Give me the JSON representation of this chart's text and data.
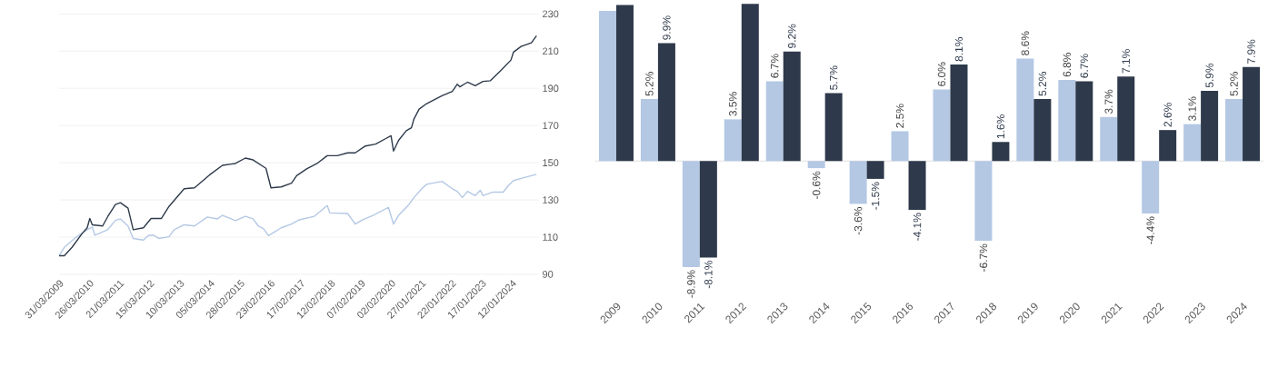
{
  "chart_data": [
    {
      "type": "line",
      "xlim": [
        "2009-03-31",
        "2024-12-01"
      ],
      "ylim": [
        90,
        230
      ],
      "yticks": [
        90,
        110,
        130,
        150,
        170,
        190,
        210,
        230
      ],
      "grid": "y",
      "xticks": [
        {
          "value": "2009-03-31",
          "label": "31/03/2009"
        },
        {
          "value": "2010-03-26",
          "label": "26/03/2010"
        },
        {
          "value": "2011-03-21",
          "label": "21/03/2011"
        },
        {
          "value": "2012-03-15",
          "label": "15/03/2012"
        },
        {
          "value": "2013-03-10",
          "label": "10/03/2013"
        },
        {
          "value": "2014-03-05",
          "label": "05/03/2014"
        },
        {
          "value": "2015-02-28",
          "label": "28/02/2015"
        },
        {
          "value": "2016-02-23",
          "label": "23/02/2016"
        },
        {
          "value": "2017-02-17",
          "label": "17/02/2017"
        },
        {
          "value": "2018-02-12",
          "label": "12/02/2018"
        },
        {
          "value": "2019-02-07",
          "label": "07/02/2019"
        },
        {
          "value": "2020-02-02",
          "label": "02/02/2020"
        },
        {
          "value": "2021-01-27",
          "label": "27/01/2021"
        },
        {
          "value": "2022-01-22",
          "label": "22/01/2022"
        },
        {
          "value": "2023-01-17",
          "label": "17/01/2023"
        },
        {
          "value": "2024-01-12",
          "label": "12/01/2024"
        }
      ],
      "series": [
        {
          "color": "#b4c8e4",
          "x": [
            "2009-03-31",
            "2009-06",
            "2009-10",
            "2010-03",
            "2010-05",
            "2010-06",
            "2010-11",
            "2011-02",
            "2011-04",
            "2011-07",
            "2011-09",
            "2012-01",
            "2012-03",
            "2012-05",
            "2012-07",
            "2012-11",
            "2013-01",
            "2013-05",
            "2013-09",
            "2014-02",
            "2014-06",
            "2014-08",
            "2015-01",
            "2015-05",
            "2015-08",
            "2015-10",
            "2015-12",
            "2016-02",
            "2016-07",
            "2016-11",
            "2017-02",
            "2017-08",
            "2018-01",
            "2018-02",
            "2018-09",
            "2018-12",
            "2019-03",
            "2019-07",
            "2020-01",
            "2020-03",
            "2020-05",
            "2020-09",
            "2020-11",
            "2021-02",
            "2021-04",
            "2021-10",
            "2022-02",
            "2022-04",
            "2022-06",
            "2022-08",
            "2022-11",
            "2023-01",
            "2023-02",
            "2023-06",
            "2023-10",
            "2023-12",
            "2024-02",
            "2024-07",
            "2024-11"
          ],
          "values": [
            100,
            104.5,
            109.3,
            114,
            115.4,
            111,
            114,
            119,
            119.8,
            116,
            109.3,
            108.4,
            111,
            111,
            109.3,
            110.2,
            114,
            116.6,
            116,
            120.8,
            119.8,
            121.7,
            118.9,
            121.2,
            119.8,
            116,
            114.6,
            110.8,
            115,
            117,
            119.3,
            121.2,
            127,
            123,
            122.7,
            117,
            119.3,
            121.7,
            126,
            117,
            121.7,
            127.5,
            131.3,
            136,
            138.4,
            140,
            136,
            134.6,
            131.3,
            134.6,
            132.3,
            135.2,
            132.3,
            134.2,
            134.2,
            137.7,
            140.4,
            142.3,
            143.8
          ]
        },
        {
          "color": "#2e3a4b",
          "x": [
            "2009-03-31",
            "2009-06",
            "2009-09",
            "2010-01",
            "2010-03",
            "2010-04",
            "2010-05",
            "2010-09",
            "2010-11",
            "2011-02",
            "2011-04",
            "2011-07",
            "2011-09",
            "2012-01",
            "2012-04",
            "2012-08",
            "2012-11",
            "2013-05",
            "2013-09",
            "2014-03",
            "2014-08",
            "2015-01",
            "2015-05",
            "2015-08",
            "2016-01",
            "2016-03",
            "2016-07",
            "2016-11",
            "2017-01",
            "2017-05",
            "2017-09",
            "2018-01",
            "2018-05",
            "2018-09",
            "2018-12",
            "2019-04",
            "2019-08",
            "2019-12",
            "2020-02",
            "2020-03",
            "2020-05",
            "2020-08",
            "2020-10",
            "2020-11",
            "2021-01",
            "2021-04",
            "2021-10",
            "2022-02",
            "2022-04",
            "2022-05",
            "2022-08",
            "2022-11",
            "2023-02",
            "2023-05",
            "2023-09",
            "2024-01",
            "2024-02",
            "2024-05",
            "2024-09",
            "2024-11"
          ],
          "values": [
            100,
            100,
            104.5,
            112,
            115,
            120,
            116.6,
            116,
            121,
            127.5,
            128.5,
            125.6,
            114,
            115,
            120,
            120,
            126.5,
            136,
            136.5,
            143.5,
            148.6,
            149.6,
            152.5,
            151.5,
            147,
            136.5,
            137,
            139,
            143,
            146.7,
            149.6,
            153.8,
            153.8,
            155.3,
            155.3,
            159,
            160,
            163,
            164.5,
            156.3,
            162,
            167.2,
            168.8,
            173.6,
            178.8,
            181.8,
            186,
            188.3,
            192.2,
            190.8,
            193.3,
            191.4,
            193.7,
            194.1,
            199.5,
            205.2,
            209.5,
            212.5,
            214.5,
            218.3
          ]
        }
      ]
    },
    {
      "type": "bar",
      "tick_labels": "x",
      "categories": [
        "2009",
        "2010",
        "2011",
        "2012",
        "2013",
        "2014",
        "2015",
        "2016",
        "2017",
        "2018",
        "2019",
        "2020",
        "2021",
        "2022",
        "2023",
        "2024"
      ],
      "series": [
        {
          "color": "#b4c8e4",
          "values": [
            12.6,
            5.2,
            -8.9,
            3.5,
            6.7,
            -0.6,
            -3.6,
            2.5,
            6.0,
            -6.7,
            8.6,
            6.8,
            3.7,
            -4.4,
            3.1,
            5.2
          ],
          "value_labels": [
            null,
            "5.2%",
            "-8.9%",
            "3.5%",
            "6.7%",
            "-0.6%",
            "-3.6%",
            "2.5%",
            "6.0%",
            "-6.7%",
            "8.6%",
            "6.8%",
            "3.7%",
            "-4.4%",
            "3.1%",
            "5.2%"
          ]
        },
        {
          "color": "#2e3a4b",
          "values": [
            13.1,
            9.9,
            -8.1,
            13.2,
            9.2,
            5.7,
            -1.5,
            -4.1,
            8.1,
            1.6,
            5.2,
            6.7,
            7.1,
            2.6,
            5.9,
            7.9
          ],
          "value_labels": [
            null,
            "9.9%",
            "-8.1%",
            null,
            "9.2%",
            "5.7%",
            "-1.5%",
            "-4.1%",
            "8.1%",
            "1.6%",
            "5.2%",
            "6.7%",
            "7.1%",
            "2.6%",
            "5.9%",
            "7.9%"
          ]
        }
      ]
    }
  ]
}
